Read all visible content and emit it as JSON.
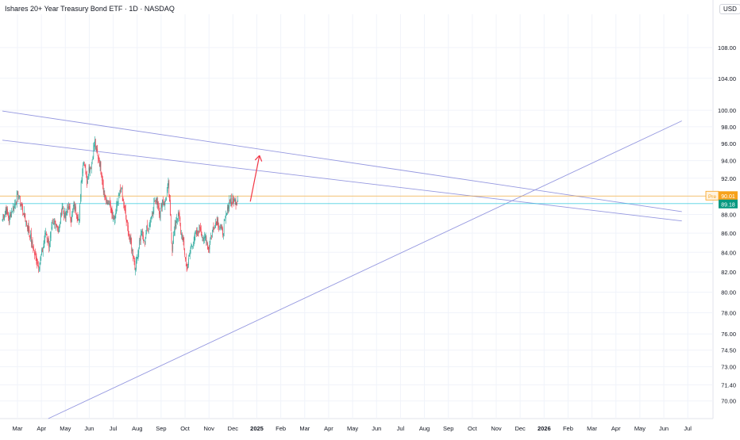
{
  "header": {
    "title": "Ishares 20+ Year Treasury Bond ETF · 1D · NASDAQ",
    "currency": "USD"
  },
  "colors": {
    "up": "#26a69a",
    "down": "#f23645",
    "trendline": "#9598e0",
    "annotation_arrow": "#f23645",
    "pre_label": "#f7a21b",
    "last_label": "#089981",
    "grid": "#f0f3fa",
    "axis_text": "#131722"
  },
  "chart_data": {
    "type": "candlestick",
    "title": "Ishares 20+ Year Treasury Bond ETF · 1D · NASDAQ",
    "y_scale": "log",
    "ylim": [
      68.5,
      112.5
    ],
    "y_ticks": [
      70.0,
      71.4,
      73.0,
      74.5,
      76.0,
      78.0,
      80.0,
      82.0,
      84.0,
      86.0,
      88.0,
      90.0,
      92.0,
      94.0,
      96.0,
      98.0,
      100.0,
      104.0,
      108.0
    ],
    "x_ticks": [
      "Mar",
      "Apr",
      "May",
      "Jun",
      "Jul",
      "Aug",
      "Sep",
      "Oct",
      "Nov",
      "Dec",
      "2025",
      "Feb",
      "Mar",
      "Apr",
      "May",
      "Jun",
      "Jul",
      "Aug",
      "Sep",
      "Oct",
      "Nov",
      "Dec",
      "2026",
      "Feb",
      "Mar",
      "Apr",
      "May",
      "Jun",
      "Jul"
    ],
    "price_labels": {
      "pre": {
        "tag": "Pre",
        "value": "90.01"
      },
      "last": {
        "value": "89.18"
      }
    },
    "anchors": [
      [
        0,
        87.5
      ],
      [
        5,
        88.6
      ],
      [
        10,
        87.5
      ],
      [
        17,
        88.9
      ],
      [
        24,
        90.1
      ],
      [
        31,
        88.5
      ],
      [
        36,
        87.2
      ],
      [
        41,
        86.1
      ],
      [
        46,
        84.6
      ],
      [
        51,
        83.3
      ],
      [
        56,
        82.7
      ],
      [
        61,
        84.2
      ],
      [
        66,
        86.1
      ],
      [
        71,
        84.8
      ],
      [
        76,
        86.6
      ],
      [
        81,
        87.3
      ],
      [
        86,
        86.1
      ],
      [
        91,
        88.9
      ],
      [
        96,
        87.5
      ],
      [
        100,
        89.0
      ],
      [
        105,
        87.4
      ],
      [
        109,
        89.0
      ],
      [
        114,
        88.0
      ],
      [
        117,
        87.2
      ],
      [
        120,
        91.6
      ],
      [
        124,
        94.2
      ],
      [
        126,
        93.5
      ],
      [
        129,
        91.5
      ],
      [
        132,
        93.1
      ],
      [
        136,
        93.6
      ],
      [
        139,
        95.5
      ],
      [
        141,
        96.3
      ],
      [
        143,
        95.2
      ],
      [
        146,
        94.4
      ],
      [
        150,
        93.2
      ],
      [
        153,
        91.4
      ],
      [
        156,
        90.1
      ],
      [
        159,
        89.0
      ],
      [
        162,
        89.5
      ],
      [
        166,
        88.1
      ],
      [
        170,
        87.1
      ],
      [
        174,
        88.7
      ],
      [
        178,
        90.0
      ],
      [
        181,
        91.1
      ],
      [
        183,
        89.9
      ],
      [
        185,
        88.9
      ],
      [
        188,
        87.7
      ],
      [
        191,
        86.5
      ],
      [
        194,
        85.5
      ],
      [
        197,
        84.4
      ],
      [
        200,
        83.6
      ],
      [
        202,
        82.4
      ],
      [
        205,
        83.5
      ],
      [
        209,
        85.1
      ],
      [
        212,
        86.1
      ],
      [
        216,
        85.0
      ],
      [
        220,
        86.4
      ],
      [
        224,
        86.9
      ],
      [
        228,
        88.1
      ],
      [
        232,
        89.5
      ],
      [
        236,
        89.5
      ],
      [
        240,
        88.1
      ],
      [
        244,
        89.6
      ],
      [
        248,
        89.2
      ],
      [
        251,
        90.6
      ],
      [
        253,
        91.3
      ],
      [
        255,
        89.0
      ],
      [
        257,
        86.3
      ],
      [
        259,
        84.4
      ],
      [
        262,
        86.2
      ],
      [
        266,
        87.8
      ],
      [
        269,
        87.8
      ],
      [
        272,
        86.2
      ],
      [
        275,
        85.3
      ],
      [
        278,
        83.9
      ],
      [
        281,
        82.5
      ],
      [
        284,
        83.1
      ],
      [
        287,
        84.5
      ],
      [
        290,
        85.0
      ],
      [
        294,
        85.6
      ],
      [
        298,
        86.1
      ],
      [
        301,
        86.7
      ],
      [
        304,
        86.0
      ],
      [
        307,
        85.1
      ],
      [
        310,
        85.7
      ],
      [
        314,
        84.3
      ],
      [
        317,
        85.4
      ],
      [
        320,
        86.2
      ],
      [
        324,
        87.0
      ],
      [
        328,
        87.4
      ],
      [
        332,
        86.5
      ],
      [
        336,
        86.1
      ],
      [
        339,
        87.1
      ],
      [
        342,
        88.1
      ],
      [
        345,
        89.2
      ],
      [
        347,
        89.8
      ],
      [
        350,
        89.3
      ],
      [
        353,
        89.6
      ],
      [
        356,
        89.4
      ],
      [
        359,
        89.6
      ]
    ],
    "trendlines": [
      {
        "from": [
          0,
          99.9
        ],
        "to": [
          1036,
          88.3
        ]
      },
      {
        "from": [
          0,
          96.4
        ],
        "to": [
          1036,
          87.3
        ]
      },
      {
        "from": [
          70,
          68.5
        ],
        "to": [
          1036,
          98.7
        ]
      }
    ],
    "annotation_arrow": {
      "from": [
        378,
        89.4
      ],
      "to": [
        392,
        94.6
      ]
    },
    "horizontal_lines": [
      {
        "value": 90.01,
        "color": "#f7a21b"
      },
      {
        "value": 89.18,
        "color": "#26c6da"
      }
    ]
  }
}
